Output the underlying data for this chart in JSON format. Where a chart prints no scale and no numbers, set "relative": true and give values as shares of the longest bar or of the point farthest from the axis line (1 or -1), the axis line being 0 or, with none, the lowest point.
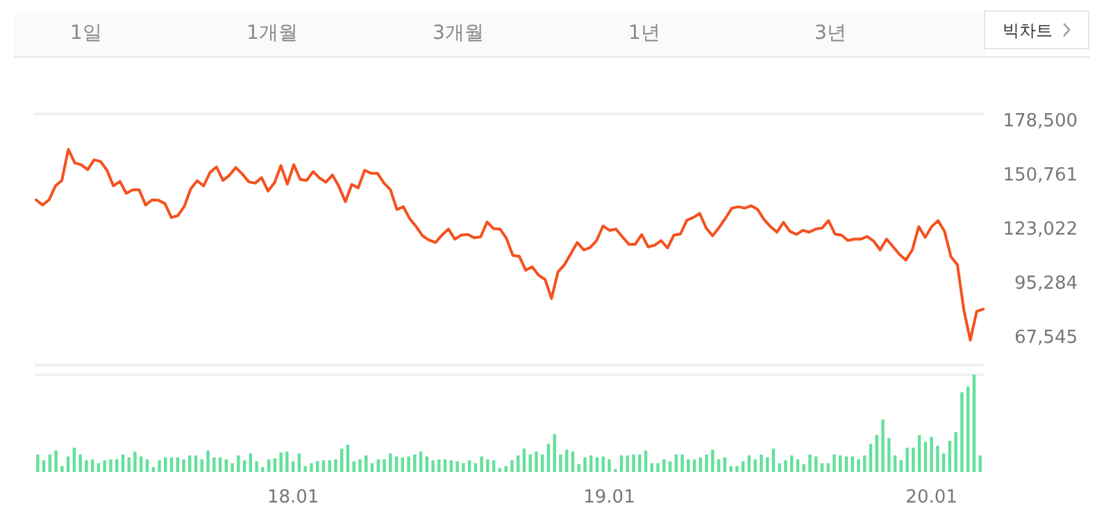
{
  "chart_data": [
    {
      "type": "line",
      "color": "#f4511e",
      "annotations": [
        "1일",
        "1개월",
        "3개월",
        "1년",
        "3년",
        "빅차트"
      ],
      "categories": [
        null,
        null,
        null,
        null,
        null,
        null,
        null,
        null,
        null,
        null,
        null,
        null,
        null,
        null,
        null,
        null,
        null,
        null,
        null,
        null,
        null,
        null,
        null,
        null,
        null,
        null,
        null,
        null,
        null,
        null,
        null,
        null,
        null,
        null,
        null,
        null,
        null,
        null,
        null,
        null,
        null,
        null,
        null,
        null,
        null,
        null,
        null,
        null,
        null,
        null,
        null,
        null,
        null,
        null,
        null,
        null,
        null,
        null,
        null,
        null,
        null,
        null,
        null,
        null,
        null,
        null,
        null,
        null,
        null,
        null,
        null,
        null,
        null,
        null,
        null,
        null,
        null,
        null,
        null,
        null,
        null,
        null,
        null,
        null,
        null,
        null,
        null,
        null,
        null,
        null,
        null,
        null,
        null,
        null,
        null,
        null,
        null,
        null,
        null,
        null,
        null,
        null,
        null,
        null,
        null,
        null,
        null,
        null,
        null,
        null,
        null,
        null,
        null,
        null,
        null,
        null,
        null,
        null,
        null,
        null,
        null,
        null,
        null,
        null,
        null,
        null,
        null,
        null,
        null,
        null,
        null,
        null,
        null,
        null,
        null,
        null,
        null,
        null,
        null,
        null,
        null,
        null,
        null,
        null,
        null,
        null,
        null,
        null
      ],
      "values": [
        137200,
        134600,
        137200,
        144400,
        147200,
        163100,
        156200,
        155200,
        152700,
        157700,
        156900,
        152400,
        144400,
        146700,
        140600,
        142400,
        142400,
        134600,
        137200,
        137000,
        135300,
        128200,
        129200,
        133900,
        142900,
        147000,
        144400,
        151300,
        154100,
        147200,
        149800,
        153800,
        150500,
        146500,
        145800,
        148600,
        141700,
        146000,
        154800,
        145300,
        155200,
        147700,
        147200,
        151700,
        148400,
        146300,
        150000,
        144100,
        136300,
        145100,
        143400,
        152400,
        150800,
        150800,
        145800,
        142400,
        132300,
        133700,
        127500,
        123500,
        118800,
        116600,
        115400,
        119200,
        122300,
        117100,
        119200,
        119500,
        117800,
        118300,
        125900,
        122500,
        122300,
        117500,
        108800,
        108300,
        101200,
        102900,
        98600,
        96500,
        86700,
        100300,
        104000,
        109700,
        115400,
        111600,
        112800,
        116400,
        123900,
        121600,
        122300,
        118300,
        114500,
        114500,
        119500,
        113100,
        114000,
        116400,
        112600,
        119200,
        119700,
        126800,
        128200,
        130300,
        122800,
        118800,
        123000,
        127800,
        133000,
        133700,
        133000,
        134200,
        132300,
        127100,
        123500,
        120700,
        125700,
        121100,
        119500,
        121600,
        120700,
        122300,
        122800,
        126600,
        119700,
        119200,
        116400,
        117100,
        117100,
        118500,
        116100,
        111600,
        117100,
        113300,
        109300,
        106400,
        111600,
        123500,
        118000,
        123500,
        126600,
        121100,
        108100,
        104000,
        80800,
        65400,
        80100,
        81300
      ],
      "ylim": [
        52600,
        181300
      ],
      "yticks": [
        {
          "value": 178500,
          "label": "178,500"
        },
        {
          "value": 150761,
          "label": "150,761"
        },
        {
          "value": 123022,
          "label": "123,022"
        },
        {
          "value": 95284,
          "label": "95,284"
        },
        {
          "value": 67545,
          "label": "67,545"
        }
      ],
      "tick_labels": "y"
    },
    {
      "type": "bar",
      "color": "#63e09a",
      "relative": true,
      "categories": [
        null,
        null,
        null,
        null,
        null,
        null,
        null,
        null,
        null,
        null,
        null,
        null,
        null,
        null,
        null,
        null,
        null,
        null,
        null,
        null,
        null,
        null,
        null,
        null,
        null,
        null,
        null,
        null,
        null,
        null,
        null,
        null,
        null,
        null,
        null,
        null,
        null,
        null,
        null,
        null,
        null,
        null,
        "18.01",
        null,
        null,
        null,
        null,
        null,
        null,
        null,
        null,
        null,
        null,
        null,
        null,
        null,
        null,
        null,
        null,
        null,
        null,
        null,
        null,
        null,
        null,
        null,
        null,
        null,
        null,
        null,
        null,
        null,
        null,
        null,
        null,
        null,
        null,
        null,
        null,
        null,
        null,
        null,
        null,
        null,
        null,
        null,
        null,
        null,
        null,
        null,
        null,
        null,
        null,
        null,
        "19.01",
        null,
        null,
        null,
        null,
        null,
        null,
        null,
        null,
        null,
        null,
        null,
        null,
        null,
        null,
        null,
        null,
        null,
        null,
        null,
        null,
        null,
        null,
        null,
        null,
        null,
        null,
        null,
        null,
        null,
        null,
        null,
        null,
        null,
        null,
        null,
        null,
        null,
        null,
        null,
        null,
        null,
        null,
        null,
        null,
        null,
        null,
        null,
        null,
        null,
        null,
        null,
        null,
        "20.01",
        null,
        null,
        null,
        null,
        null,
        null,
        null,
        null
      ],
      "values": [
        0.18,
        0.12,
        0.18,
        0.22,
        0.06,
        0.16,
        0.25,
        0.18,
        0.12,
        0.13,
        0.09,
        0.12,
        0.13,
        0.13,
        0.18,
        0.15,
        0.21,
        0.16,
        0.13,
        0.05,
        0.12,
        0.15,
        0.15,
        0.15,
        0.13,
        0.17,
        0.17,
        0.13,
        0.22,
        0.15,
        0.15,
        0.13,
        0.09,
        0.17,
        0.12,
        0.19,
        0.11,
        0.05,
        0.13,
        0.14,
        0.2,
        0.21,
        0.11,
        0.19,
        0.06,
        0.09,
        0.11,
        0.12,
        0.12,
        0.13,
        0.24,
        0.28,
        0.11,
        0.13,
        0.17,
        0.09,
        0.13,
        0.13,
        0.19,
        0.16,
        0.15,
        0.16,
        0.18,
        0.21,
        0.16,
        0.12,
        0.13,
        0.13,
        0.12,
        0.11,
        0.09,
        0.12,
        0.09,
        0.16,
        0.13,
        0.12,
        0.04,
        0.06,
        0.12,
        0.17,
        0.24,
        0.18,
        0.21,
        0.18,
        0.29,
        0.39,
        0.18,
        0.23,
        0.21,
        0.08,
        0.15,
        0.17,
        0.15,
        0.16,
        0.13,
        0.03,
        0.17,
        0.17,
        0.18,
        0.18,
        0.22,
        0.09,
        0.09,
        0.13,
        0.11,
        0.18,
        0.18,
        0.13,
        0.13,
        0.15,
        0.18,
        0.23,
        0.13,
        0.15,
        0.06,
        0.06,
        0.11,
        0.17,
        0.13,
        0.18,
        0.15,
        0.24,
        0.09,
        0.12,
        0.17,
        0.13,
        0.08,
        0.18,
        0.16,
        0.09,
        0.09,
        0.18,
        0.17,
        0.16,
        0.16,
        0.13,
        0.17,
        0.29,
        0.38,
        0.54,
        0.35,
        0.17,
        0.12,
        0.25,
        0.25,
        0.38,
        0.31,
        0.36,
        0.27,
        0.19,
        0.32,
        0.41,
        0.82,
        0.88,
        1,
        0.17
      ],
      "tick_labels": "x"
    }
  ]
}
